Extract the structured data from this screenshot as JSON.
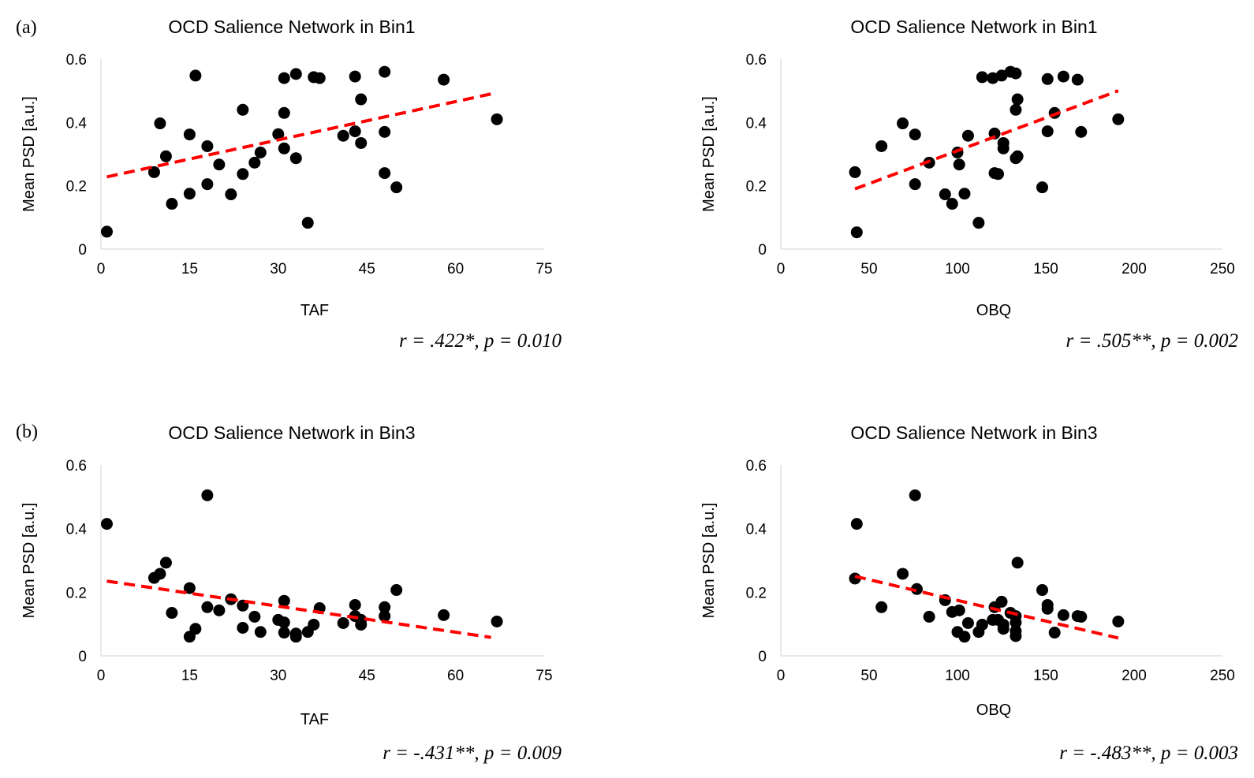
{
  "chart_data": [
    {
      "type": "scatter",
      "panel_label": "(a)",
      "title": "OCD Salience Network in Bin1",
      "xlabel": "TAF",
      "ylabel": "Mean PSD [a.u.]",
      "xlim": [
        0,
        75
      ],
      "ylim": [
        0,
        0.6
      ],
      "xticks": [
        "0",
        "15",
        "30",
        "45",
        "60",
        "75"
      ],
      "yticks": [
        "0",
        "0.2",
        "0.4",
        "0.6"
      ],
      "stat": "r = .422*, p = 0.010",
      "trendline": {
        "x": [
          1,
          67
        ],
        "y": [
          0.228,
          0.494
        ]
      },
      "points": [
        [
          1,
          0.055
        ],
        [
          9,
          0.243
        ],
        [
          10,
          0.397
        ],
        [
          11,
          0.293
        ],
        [
          12,
          0.143
        ],
        [
          15,
          0.362
        ],
        [
          15,
          0.175
        ],
        [
          16,
          0.548
        ],
        [
          18,
          0.325
        ],
        [
          18,
          0.205
        ],
        [
          20,
          0.267
        ],
        [
          22,
          0.173
        ],
        [
          24,
          0.44
        ],
        [
          24,
          0.237
        ],
        [
          26,
          0.273
        ],
        [
          27,
          0.305
        ],
        [
          30,
          0.363
        ],
        [
          31,
          0.54
        ],
        [
          31,
          0.43
        ],
        [
          31,
          0.318
        ],
        [
          33,
          0.553
        ],
        [
          33,
          0.287
        ],
        [
          35,
          0.083
        ],
        [
          36,
          0.543
        ],
        [
          37,
          0.54
        ],
        [
          41,
          0.358
        ],
        [
          43,
          0.545
        ],
        [
          43,
          0.372
        ],
        [
          44,
          0.473
        ],
        [
          44,
          0.335
        ],
        [
          48,
          0.56
        ],
        [
          48,
          0.37
        ],
        [
          48,
          0.24
        ],
        [
          50,
          0.195
        ],
        [
          58,
          0.535
        ],
        [
          67,
          0.41
        ]
      ]
    },
    {
      "type": "scatter",
      "panel_label": "",
      "title": "OCD Salience Network in Bin1",
      "xlabel": "OBQ",
      "ylabel": "Mean PSD [a.u.]",
      "xlim": [
        0,
        250
      ],
      "ylim": [
        0,
        0.6
      ],
      "xticks": [
        "0",
        "50",
        "100",
        "150",
        "200",
        "250"
      ],
      "yticks": [
        "0",
        "0.2",
        "0.4",
        "0.6"
      ],
      "stat": "r = .505**, p = 0.002",
      "trendline": {
        "x": [
          42,
          191
        ],
        "y": [
          0.19,
          0.5
        ]
      },
      "points": [
        [
          42,
          0.243
        ],
        [
          43,
          0.053
        ],
        [
          57,
          0.325
        ],
        [
          69,
          0.397
        ],
        [
          76,
          0.362
        ],
        [
          76,
          0.205
        ],
        [
          84,
          0.273
        ],
        [
          93,
          0.173
        ],
        [
          97,
          0.143
        ],
        [
          100,
          0.305
        ],
        [
          101,
          0.267
        ],
        [
          104,
          0.175
        ],
        [
          106,
          0.358
        ],
        [
          112,
          0.083
        ],
        [
          114,
          0.543
        ],
        [
          120,
          0.54
        ],
        [
          121,
          0.365
        ],
        [
          121,
          0.24
        ],
        [
          123,
          0.237
        ],
        [
          125,
          0.548
        ],
        [
          126,
          0.335
        ],
        [
          126,
          0.318
        ],
        [
          130,
          0.56
        ],
        [
          133,
          0.555
        ],
        [
          133,
          0.44
        ],
        [
          133,
          0.287
        ],
        [
          134,
          0.473
        ],
        [
          134,
          0.293
        ],
        [
          148,
          0.195
        ],
        [
          151,
          0.537
        ],
        [
          151,
          0.372
        ],
        [
          155,
          0.43
        ],
        [
          160,
          0.545
        ],
        [
          168,
          0.535
        ],
        [
          170,
          0.37
        ],
        [
          191,
          0.41
        ]
      ]
    },
    {
      "type": "scatter",
      "panel_label": "(b)",
      "title": "OCD Salience Network in Bin3",
      "xlabel": "TAF",
      "ylabel": "Mean PSD [a.u.]",
      "xlim": [
        0,
        75
      ],
      "ylim": [
        0,
        0.6
      ],
      "xticks": [
        "0",
        "15",
        "30",
        "45",
        "60",
        "75"
      ],
      "yticks": [
        "0",
        "0.2",
        "0.4",
        "0.6"
      ],
      "stat": "r = -.431**, p = 0.009",
      "trendline": {
        "x": [
          1,
          66
        ],
        "y": [
          0.235,
          0.058
        ]
      },
      "points": [
        [
          1,
          0.415
        ],
        [
          9,
          0.245
        ],
        [
          10,
          0.258
        ],
        [
          11,
          0.293
        ],
        [
          12,
          0.135
        ],
        [
          15,
          0.213
        ],
        [
          15,
          0.06
        ],
        [
          16,
          0.085
        ],
        [
          18,
          0.505
        ],
        [
          18,
          0.153
        ],
        [
          20,
          0.143
        ],
        [
          22,
          0.178
        ],
        [
          24,
          0.158
        ],
        [
          24,
          0.088
        ],
        [
          26,
          0.123
        ],
        [
          27,
          0.075
        ],
        [
          30,
          0.113
        ],
        [
          31,
          0.173
        ],
        [
          31,
          0.105
        ],
        [
          31,
          0.073
        ],
        [
          33,
          0.07
        ],
        [
          33,
          0.06
        ],
        [
          35,
          0.075
        ],
        [
          36,
          0.098
        ],
        [
          37,
          0.15
        ],
        [
          41,
          0.103
        ],
        [
          43,
          0.16
        ],
        [
          43,
          0.125
        ],
        [
          44,
          0.113
        ],
        [
          44,
          0.098
        ],
        [
          48,
          0.153
        ],
        [
          48,
          0.125
        ],
        [
          50,
          0.207
        ],
        [
          58,
          0.128
        ],
        [
          67,
          0.108
        ]
      ]
    },
    {
      "type": "scatter",
      "panel_label": "",
      "title": "OCD Salience Network in Bin3",
      "xlabel": "OBQ",
      "ylabel": "Mean PSD [a.u.]",
      "xlim": [
        0,
        250
      ],
      "ylim": [
        0,
        0.6
      ],
      "xticks": [
        "0",
        "50",
        "100",
        "150",
        "200",
        "250"
      ],
      "yticks": [
        "0",
        "0.2",
        "0.4",
        "0.6"
      ],
      "stat": "r = -.483**, p = 0.003",
      "trendline": {
        "x": [
          42,
          191
        ],
        "y": [
          0.25,
          0.056
        ]
      },
      "points": [
        [
          43,
          0.415
        ],
        [
          42,
          0.243
        ],
        [
          57,
          0.153
        ],
        [
          69,
          0.258
        ],
        [
          76,
          0.505
        ],
        [
          77,
          0.21
        ],
        [
          84,
          0.123
        ],
        [
          93,
          0.175
        ],
        [
          97,
          0.138
        ],
        [
          100,
          0.075
        ],
        [
          101,
          0.143
        ],
        [
          104,
          0.06
        ],
        [
          106,
          0.103
        ],
        [
          112,
          0.075
        ],
        [
          114,
          0.098
        ],
        [
          120,
          0.113
        ],
        [
          121,
          0.153
        ],
        [
          123,
          0.113
        ],
        [
          125,
          0.17
        ],
        [
          126,
          0.098
        ],
        [
          126,
          0.085
        ],
        [
          130,
          0.135
        ],
        [
          133,
          0.125
        ],
        [
          133,
          0.105
        ],
        [
          133,
          0.078
        ],
        [
          133,
          0.062
        ],
        [
          134,
          0.293
        ],
        [
          148,
          0.207
        ],
        [
          151,
          0.16
        ],
        [
          151,
          0.148
        ],
        [
          155,
          0.073
        ],
        [
          160,
          0.128
        ],
        [
          168,
          0.125
        ],
        [
          170,
          0.123
        ],
        [
          191,
          0.108
        ]
      ]
    }
  ]
}
